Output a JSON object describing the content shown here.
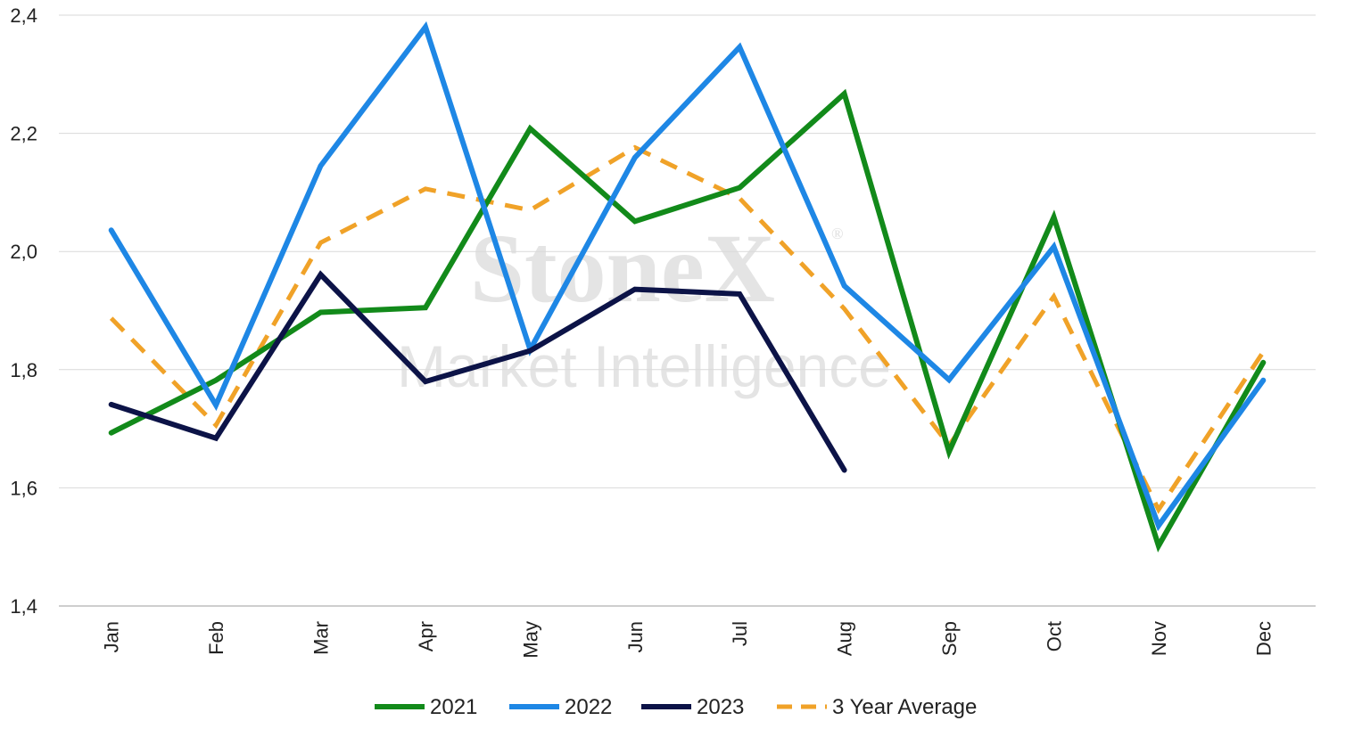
{
  "watermark": {
    "brand": "StoneX",
    "sub": "Market Intelligence",
    "reg": "®"
  },
  "chart_data": {
    "type": "line",
    "categories": [
      "Jan",
      "Feb",
      "Mar",
      "Apr",
      "May",
      "Jun",
      "Jul",
      "Aug",
      "Sep",
      "Oct",
      "Nov",
      "Dec"
    ],
    "ylim": [
      1.4,
      2.4
    ],
    "yticks": [
      "1,4",
      "1,6",
      "1,8",
      "2,0",
      "2,2",
      "2,4"
    ],
    "ytick_values": [
      1.4,
      1.6,
      1.8,
      2.0,
      2.2,
      2.4
    ],
    "grid": true,
    "legend_position": "bottom",
    "series": [
      {
        "name": "2021",
        "color": "#128a1a",
        "dashed": false,
        "values": [
          1.693,
          1.782,
          1.897,
          1.905,
          2.208,
          2.051,
          2.108,
          2.267,
          1.661,
          2.058,
          1.502,
          1.812
        ]
      },
      {
        "name": "2022",
        "color": "#1e87e5",
        "dashed": false,
        "values": [
          2.036,
          1.74,
          2.145,
          2.38,
          1.834,
          2.159,
          2.346,
          1.942,
          1.783,
          2.008,
          1.536,
          1.782
        ]
      },
      {
        "name": "2023",
        "color": "#0c1347",
        "dashed": false,
        "values": [
          1.741,
          1.684,
          1.961,
          1.78,
          1.832,
          1.936,
          1.928,
          1.63,
          null,
          null,
          null,
          null
        ]
      },
      {
        "name": "3 Year Average",
        "color": "#f0a228",
        "dashed": true,
        "values": [
          1.887,
          1.706,
          2.015,
          2.106,
          2.07,
          2.176,
          2.09,
          1.903,
          1.672,
          1.924,
          1.563,
          1.83
        ]
      }
    ]
  }
}
